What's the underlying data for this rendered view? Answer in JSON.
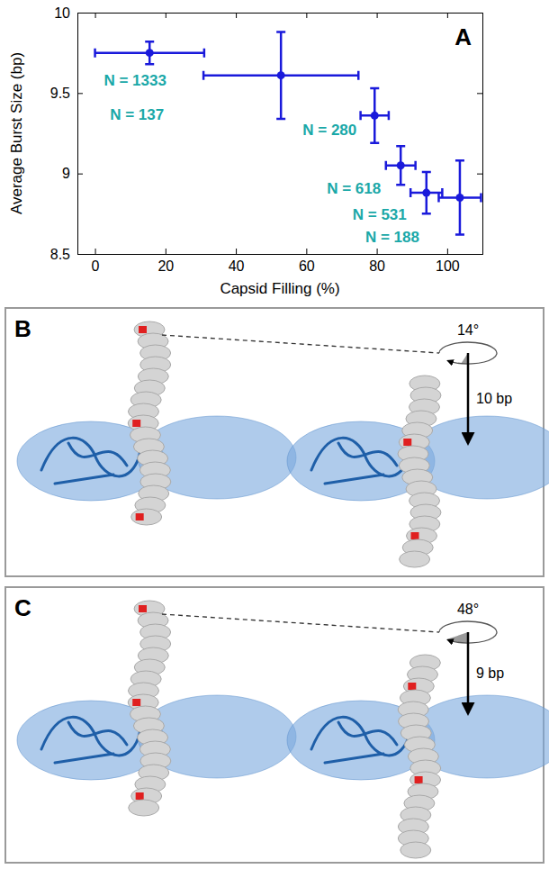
{
  "chart_data": {
    "type": "scatter",
    "panel": "A",
    "x_label": "Capsid Filling (%)",
    "y_label": "Average Burst Size (bp)",
    "x": [
      15.5,
      52.8,
      79.4,
      86.8,
      94.1,
      103.6
    ],
    "values": [
      9.75,
      9.61,
      9.36,
      9.05,
      8.88,
      8.85
    ],
    "x_errors": [
      15.5,
      22,
      4,
      4.2,
      4.5,
      6
    ],
    "errors": [
      0.07,
      0.27,
      0.17,
      0.12,
      0.13,
      0.23
    ],
    "point_labels": [
      "N = 1333",
      "N = 137",
      "N = 280",
      "N = 618",
      "N = 531",
      "N = 188"
    ],
    "color": "#1a1adb",
    "marker": "circle",
    "grid": false,
    "xlim": [
      -5,
      110
    ],
    "xticks": [
      0,
      20,
      40,
      60,
      80,
      100
    ],
    "ylim": [
      8.5,
      10
    ],
    "yticks": [
      8.5,
      9,
      9.5,
      10
    ]
  },
  "diagrams": [
    {
      "panel": "B",
      "rotation": {
        "value": 14,
        "label": "14°"
      },
      "step": {
        "value": 10,
        "label": "10 bp"
      }
    },
    {
      "panel": "C",
      "rotation": {
        "value": 48,
        "label": "48°"
      },
      "step": {
        "value": 9,
        "label": "9 bp"
      }
    }
  ]
}
